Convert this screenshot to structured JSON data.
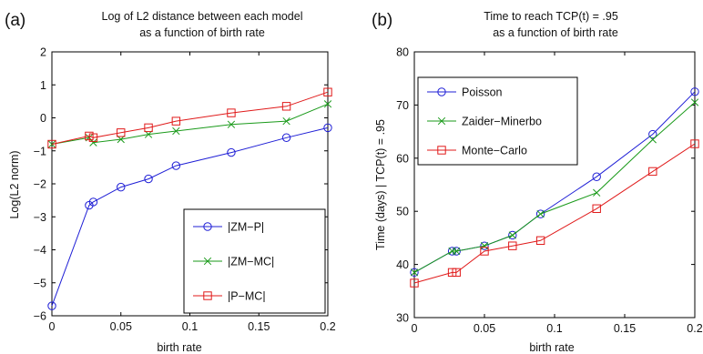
{
  "chart_data": [
    {
      "panel_label": "(a)",
      "type": "line",
      "title_lines": [
        "Log of L2 distance between each model",
        "as a function of birth rate"
      ],
      "xlabel": "birth rate",
      "ylabel": "Log(L2 norm)",
      "xlim": [
        0,
        0.2
      ],
      "ylim": [
        -6,
        2
      ],
      "xticks": [
        0,
        0.05,
        0.1,
        0.15,
        0.2
      ],
      "xtick_labels": [
        "0",
        "0.05",
        "0.1",
        "0.15",
        "0.2"
      ],
      "yticks": [
        -6,
        -5,
        -4,
        -3,
        -2,
        -1,
        0,
        1,
        2
      ],
      "ytick_labels": [
        "−6",
        "−5",
        "−4",
        "−3",
        "−2",
        "−1",
        "0",
        "1",
        "2"
      ],
      "grid": false,
      "legend_position": "bottom-right",
      "x": [
        0,
        0.027,
        0.03,
        0.05,
        0.07,
        0.09,
        0.13,
        0.17,
        0.2
      ],
      "series": [
        {
          "name": "|ZM−P|",
          "color": "#1f1fd6",
          "marker": "circle",
          "values": [
            -5.7,
            -2.65,
            -2.55,
            -2.1,
            -1.85,
            -1.45,
            -1.05,
            -0.6,
            -0.3
          ]
        },
        {
          "name": "|ZM−MC|",
          "color": "#1a9a1a",
          "marker": "x",
          "values": [
            -0.8,
            -0.6,
            -0.75,
            -0.65,
            -0.5,
            -0.4,
            -0.2,
            -0.1,
            0.42
          ]
        },
        {
          "name": "|P−MC|",
          "color": "#e01a1a",
          "marker": "square",
          "values": [
            -0.8,
            -0.55,
            -0.6,
            -0.45,
            -0.3,
            -0.1,
            0.15,
            0.35,
            0.78
          ]
        }
      ]
    },
    {
      "panel_label": "(b)",
      "type": "line",
      "title_lines": [
        "Time to reach TCP(t) = .95",
        "as a function of birth rate"
      ],
      "xlabel": "birth rate",
      "ylabel": "Time (days) | TCP(t) = .95",
      "xlim": [
        0,
        0.2
      ],
      "ylim": [
        30,
        80
      ],
      "xticks": [
        0,
        0.05,
        0.1,
        0.15,
        0.2
      ],
      "xtick_labels": [
        "0",
        "0.05",
        "0.1",
        "0.15",
        "0.2"
      ],
      "yticks": [
        30,
        40,
        50,
        60,
        70,
        80
      ],
      "ytick_labels": [
        "30",
        "40",
        "50",
        "60",
        "70",
        "80"
      ],
      "grid": false,
      "legend_position": "top-left",
      "x": [
        0,
        0.027,
        0.03,
        0.05,
        0.07,
        0.09,
        0.13,
        0.17,
        0.2
      ],
      "series": [
        {
          "name": "Poisson",
          "color": "#1f1fd6",
          "marker": "circle",
          "values": [
            38.5,
            42.5,
            42.5,
            43.5,
            45.5,
            49.5,
            56.5,
            64.5,
            72.5
          ]
        },
        {
          "name": "Zaider−Minerbo",
          "color": "#1a9a1a",
          "marker": "x",
          "values": [
            38.5,
            42.5,
            42.5,
            43.5,
            45.5,
            49.5,
            53.5,
            63.5,
            70.5
          ]
        },
        {
          "name": "Monte−Carlo",
          "color": "#e01a1a",
          "marker": "square",
          "values": [
            36.5,
            38.5,
            38.5,
            42.5,
            43.5,
            44.5,
            50.5,
            57.5,
            62.7
          ]
        }
      ]
    }
  ]
}
